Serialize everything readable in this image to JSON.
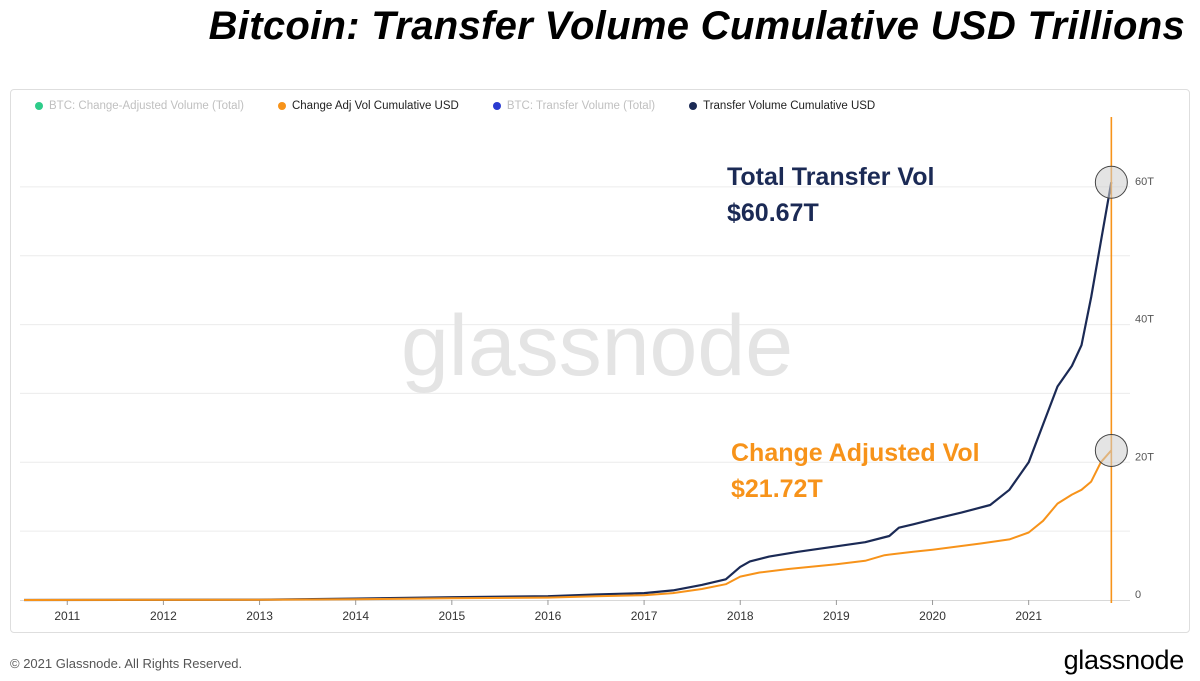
{
  "title": "Bitcoin: Transfer Volume Cumulative USD Trillions",
  "legend": [
    {
      "label": "BTC: Change-Adjusted Volume (Total)",
      "color": "#2ecc8a",
      "active": false
    },
    {
      "label": "Change Adj Vol Cumulative USD",
      "color": "#f7931a",
      "active": true
    },
    {
      "label": "BTC: Transfer Volume (Total)",
      "color": "#2a3bd1",
      "active": false
    },
    {
      "label": "Transfer Volume Cumulative USD",
      "color": "#1b2a55",
      "active": true
    }
  ],
  "watermark": "glassnode",
  "annotations": {
    "transfer_label": "Total Transfer Vol",
    "transfer_value": "$60.67T",
    "change_label": "Change Adjusted Vol",
    "change_value": "$21.72T"
  },
  "footer": {
    "copyright": "© 2021 Glassnode. All Rights Reserved.",
    "brand": "glassnode"
  },
  "colors": {
    "transfer": "#1b2a55",
    "change_adjusted": "#f7931a",
    "grid": "#ececec"
  },
  "chart_data": {
    "type": "line",
    "title": "Bitcoin: Transfer Volume Cumulative USD Trillions",
    "x_tick_labels": [
      "2011",
      "2012",
      "2013",
      "2014",
      "2015",
      "2016",
      "2017",
      "2018",
      "2019",
      "2020",
      "2021"
    ],
    "y_tick_labels": [
      "0",
      "20T",
      "40T",
      "60T"
    ],
    "ylim": [
      0,
      70
    ],
    "xlim": [
      2010.55,
      2021.95
    ],
    "grid": true,
    "legend_position": "top-left",
    "marker_x": 2021.86,
    "series": [
      {
        "name": "Transfer Volume Cumulative USD",
        "color": "#1b2a55",
        "points": [
          [
            2010.55,
            0
          ],
          [
            2013.0,
            0.05
          ],
          [
            2014.0,
            0.2
          ],
          [
            2015.0,
            0.4
          ],
          [
            2016.0,
            0.55
          ],
          [
            2016.5,
            0.8
          ],
          [
            2017.0,
            1.0
          ],
          [
            2017.3,
            1.4
          ],
          [
            2017.6,
            2.2
          ],
          [
            2017.85,
            3.0
          ],
          [
            2018.0,
            4.8
          ],
          [
            2018.1,
            5.6
          ],
          [
            2018.3,
            6.3
          ],
          [
            2018.6,
            7.0
          ],
          [
            2019.0,
            7.8
          ],
          [
            2019.3,
            8.4
          ],
          [
            2019.55,
            9.3
          ],
          [
            2019.65,
            10.5
          ],
          [
            2019.8,
            11.0
          ],
          [
            2020.0,
            11.7
          ],
          [
            2020.3,
            12.7
          ],
          [
            2020.6,
            13.8
          ],
          [
            2020.8,
            16.0
          ],
          [
            2021.0,
            20.0
          ],
          [
            2021.15,
            25.5
          ],
          [
            2021.3,
            31.0
          ],
          [
            2021.45,
            34.0
          ],
          [
            2021.55,
            37.0
          ],
          [
            2021.65,
            44.0
          ],
          [
            2021.75,
            52.0
          ],
          [
            2021.86,
            60.67
          ]
        ]
      },
      {
        "name": "Change Adj Vol Cumulative USD",
        "color": "#f7931a",
        "points": [
          [
            2010.55,
            0
          ],
          [
            2013.0,
            0.03
          ],
          [
            2014.0,
            0.1
          ],
          [
            2015.0,
            0.25
          ],
          [
            2016.0,
            0.35
          ],
          [
            2016.5,
            0.55
          ],
          [
            2017.0,
            0.7
          ],
          [
            2017.3,
            1.0
          ],
          [
            2017.6,
            1.6
          ],
          [
            2017.85,
            2.3
          ],
          [
            2018.0,
            3.4
          ],
          [
            2018.2,
            4.0
          ],
          [
            2018.5,
            4.5
          ],
          [
            2019.0,
            5.2
          ],
          [
            2019.3,
            5.7
          ],
          [
            2019.5,
            6.5
          ],
          [
            2019.8,
            7.0
          ],
          [
            2020.0,
            7.3
          ],
          [
            2020.5,
            8.2
          ],
          [
            2020.8,
            8.8
          ],
          [
            2021.0,
            9.8
          ],
          [
            2021.15,
            11.5
          ],
          [
            2021.3,
            14.0
          ],
          [
            2021.45,
            15.3
          ],
          [
            2021.55,
            16.0
          ],
          [
            2021.65,
            17.2
          ],
          [
            2021.75,
            20.0
          ],
          [
            2021.86,
            21.72
          ]
        ]
      }
    ]
  }
}
